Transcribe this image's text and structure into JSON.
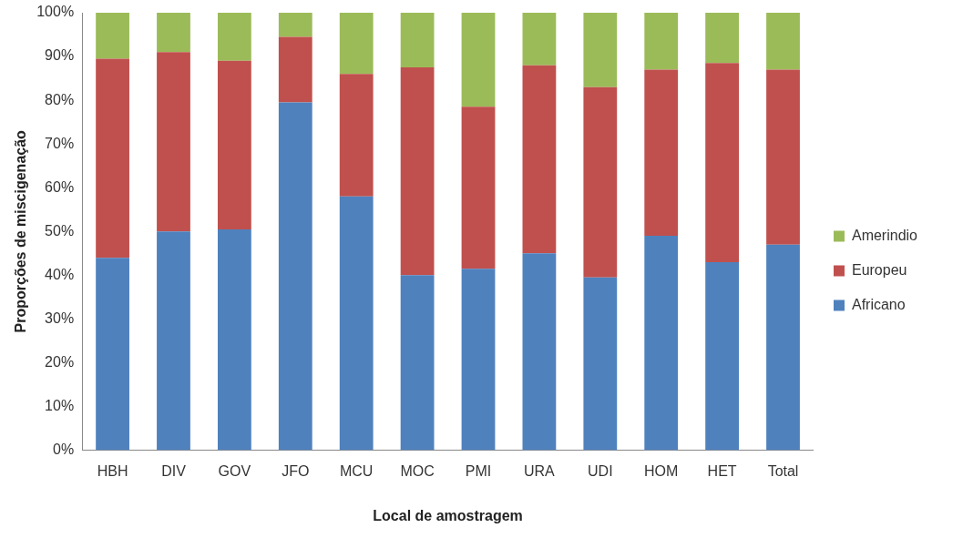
{
  "chart_data": {
    "type": "bar",
    "stacked": true,
    "xlabel": "Local de amostragem",
    "ylabel": "Proporções de miscigenação",
    "categories": [
      "HBH",
      "DIV",
      "GOV",
      "JFO",
      "MCU",
      "MOC",
      "PMI",
      "URA",
      "UDI",
      "HOM",
      "HET",
      "Total"
    ],
    "series": [
      {
        "name": "Africano",
        "color": "#4f81bd",
        "values": [
          44,
          50,
          50.5,
          79.5,
          58,
          40,
          41.5,
          45,
          39.5,
          49,
          43,
          47
        ]
      },
      {
        "name": "Europeu",
        "color": "#c0504d",
        "values": [
          45.5,
          41,
          38.5,
          15,
          28,
          47.5,
          37,
          43,
          43.5,
          38,
          45.5,
          40
        ]
      },
      {
        "name": "Amerindio",
        "color": "#9bbb59",
        "values": [
          10.5,
          9,
          11,
          5.5,
          14,
          12.5,
          21.5,
          12,
          17,
          13,
          11.5,
          13
        ]
      }
    ],
    "ylim": [
      0,
      100
    ],
    "yticks": [
      {
        "value": 0,
        "label": "0%"
      },
      {
        "value": 10,
        "label": "10%"
      },
      {
        "value": 20,
        "label": "20%"
      },
      {
        "value": 30,
        "label": "30%"
      },
      {
        "value": 40,
        "label": "40%"
      },
      {
        "value": 50,
        "label": "50%"
      },
      {
        "value": 60,
        "label": "60%"
      },
      {
        "value": 70,
        "label": "70%"
      },
      {
        "value": 80,
        "label": "80%"
      },
      {
        "value": 90,
        "label": "90%"
      },
      {
        "value": 100,
        "label": "100%"
      }
    ],
    "grid": false,
    "legend": "right"
  }
}
